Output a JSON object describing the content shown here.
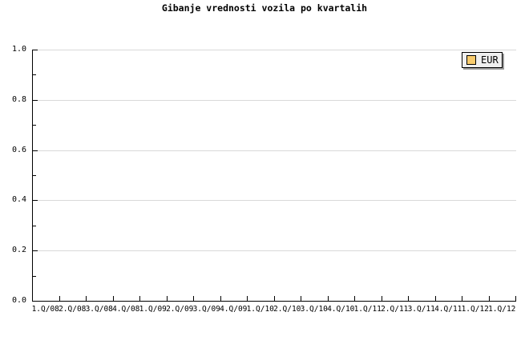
{
  "chart_data": {
    "type": "line",
    "title": "Gibanje vrednosti vozila po kvartalih",
    "categories": [
      "1.Q/08",
      "2.Q/08",
      "3.Q/08",
      "4.Q/08",
      "1.Q/09",
      "2.Q/09",
      "3.Q/09",
      "4.Q/09",
      "1.Q/10",
      "2.Q/10",
      "3.Q/10",
      "4.Q/10",
      "1.Q/11",
      "2.Q/11",
      "3.Q/11",
      "4.Q/11",
      "1.Q/12",
      "1.Q/12"
    ],
    "series": [
      {
        "name": "EUR",
        "color": "#F8CB6D",
        "values": []
      }
    ],
    "xlabel": "",
    "ylabel": "",
    "ylim": [
      0,
      1
    ],
    "y_major_ticks": [
      0,
      0.2,
      0.4,
      0.6,
      0.8,
      1
    ],
    "y_tick_labels": [
      "0.0",
      "0.2",
      "0.4",
      "0.6",
      "0.8",
      "1.0"
    ],
    "y_minor_tick_step": 0.1,
    "grid": "horizontal-only",
    "legend_position": "top-right"
  },
  "colors": {
    "background": "#FFFFFF",
    "axis": "#000000",
    "gridline": "#D9D9D9",
    "legend_bg": "#EFEFEF",
    "legend_shadow": "#999999",
    "swatch_border": "#000000",
    "text": "#000000"
  }
}
